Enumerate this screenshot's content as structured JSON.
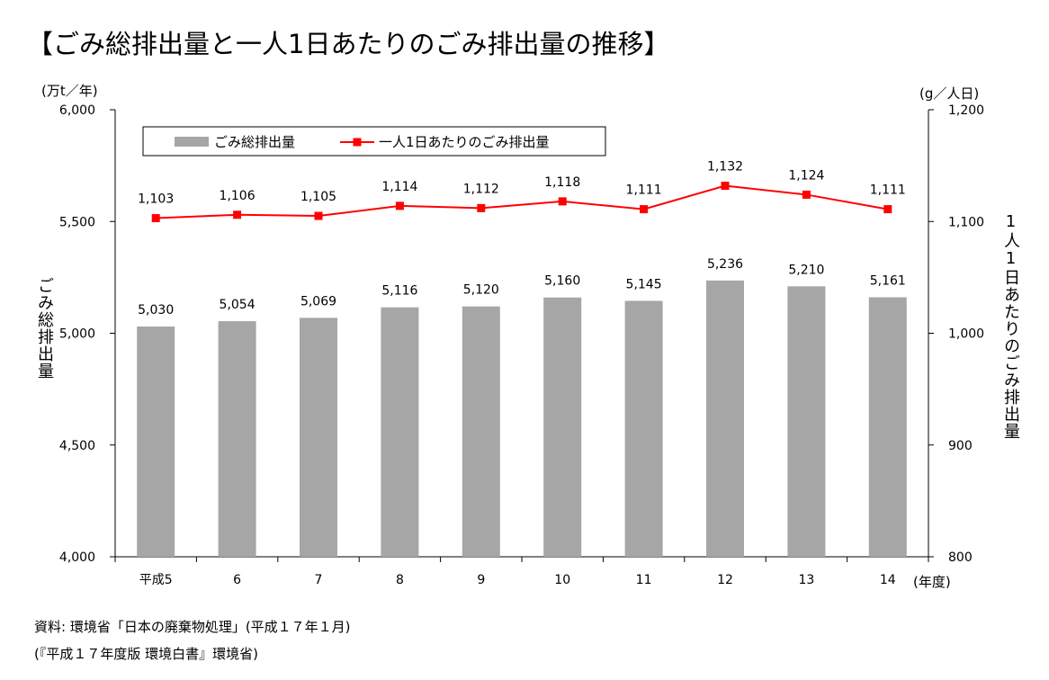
{
  "chart_data": {
    "type": "bar",
    "title": "【ごみ総排出量と一人1日あたりのごみ排出量の推移】",
    "categories": [
      "平成5",
      "6",
      "7",
      "8",
      "9",
      "10",
      "11",
      "12",
      "13",
      "14"
    ],
    "x_unit": "(年度)",
    "series": [
      {
        "name": "ごみ総排出量",
        "type": "bar",
        "axis": "left",
        "values": [
          5030,
          5054,
          5069,
          5116,
          5120,
          5160,
          5145,
          5236,
          5210,
          5161
        ],
        "labels": [
          "5,030",
          "5,054",
          "5,069",
          "5,116",
          "5,120",
          "5,160",
          "5,145",
          "5,236",
          "5,210",
          "5,161"
        ],
        "color": "#a6a6a6"
      },
      {
        "name": "一人1日あたりのごみ排出量",
        "type": "line",
        "axis": "right",
        "values": [
          1103,
          1106,
          1105,
          1114,
          1112,
          1118,
          1111,
          1132,
          1124,
          1111
        ],
        "labels": [
          "1,103",
          "1,106",
          "1,105",
          "1,114",
          "1,112",
          "1,118",
          "1,111",
          "1,132",
          "1,124",
          "1,111"
        ],
        "color": "#ff0000"
      }
    ],
    "y_left": {
      "label": "ごみ総排出量",
      "unit": "(万t／年)",
      "range": [
        4000,
        6000
      ],
      "ticks": [
        4000,
        4500,
        5000,
        5500,
        6000
      ],
      "tick_labels": [
        "4,000",
        "4,500",
        "5,000",
        "5,500",
        "6,000"
      ]
    },
    "y_right": {
      "label": "1人1日あたりのごみ排出量",
      "unit": "(g／人日)",
      "range": [
        800,
        1200
      ],
      "ticks": [
        800,
        900,
        1000,
        1100,
        1200
      ],
      "tick_labels": [
        "800",
        "900",
        "1,000",
        "1,100",
        "1,200"
      ]
    },
    "grid": false,
    "legend": {
      "position": "top-left-inside",
      "entries": [
        "ごみ総排出量",
        "一人1日あたりのごみ排出量"
      ]
    }
  },
  "source": {
    "line1": "資料: 環境省「日本の廃棄物処理」(平成１７年１月)",
    "line2": "(『平成１７年度版 環境白書』環境省)"
  }
}
